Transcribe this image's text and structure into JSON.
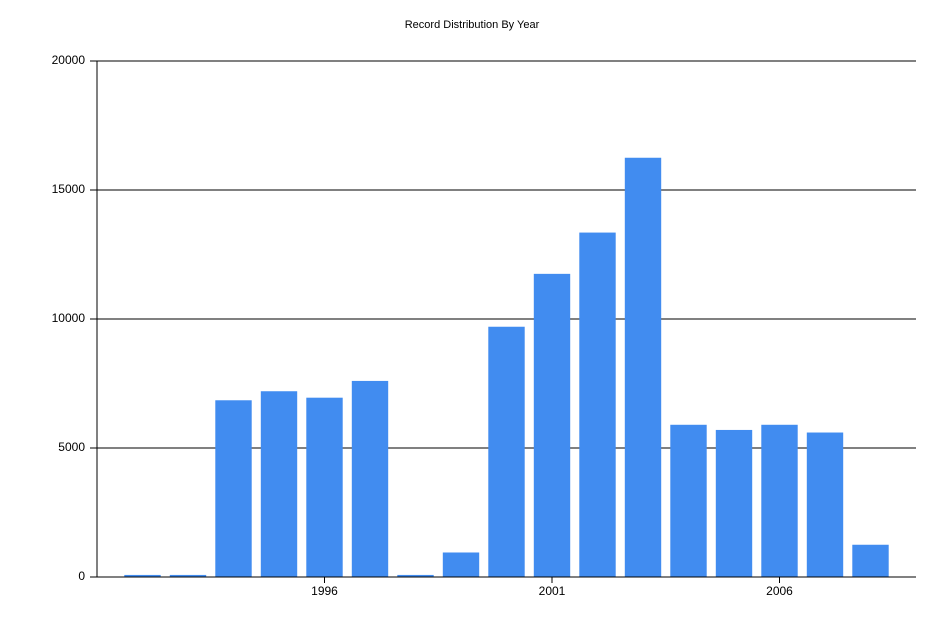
{
  "chart_data": {
    "type": "bar",
    "title": "Record Distribution By Year",
    "x": [
      1992,
      1993,
      1994,
      1995,
      1996,
      1997,
      1998,
      1999,
      2000,
      2001,
      2002,
      2003,
      2004,
      2005,
      2006,
      2007,
      2008
    ],
    "values": [
      80,
      80,
      6850,
      7200,
      6950,
      7600,
      80,
      950,
      9700,
      11750,
      13350,
      16250,
      5900,
      5700,
      5900,
      5600,
      1250
    ],
    "color": "#418cf0",
    "xlim": [
      1991,
      2009
    ],
    "xticks": [
      1996,
      2001,
      2006
    ],
    "ylim": [
      0,
      20000
    ],
    "yticks": [
      0,
      5000,
      10000,
      15000,
      20000
    ],
    "grid": true
  }
}
